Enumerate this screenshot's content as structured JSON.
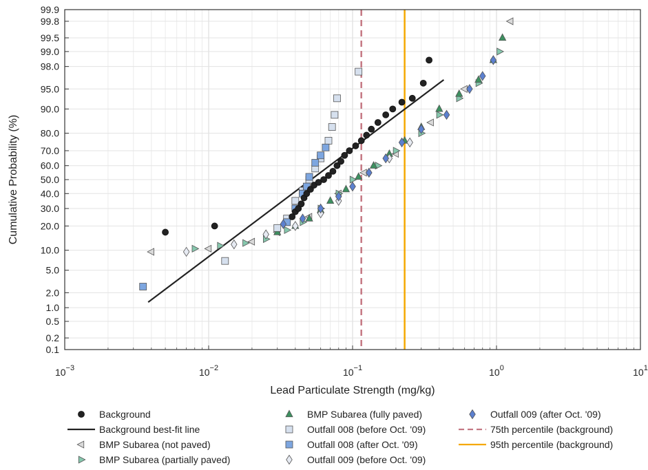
{
  "chart_data": {
    "type": "scatter",
    "xlabel": "Lead Particulate Strength (mg/kg)",
    "ylabel": "Cumulative Probability (%)",
    "x_scale": "log",
    "y_scale": "probability",
    "xlim": [
      0.001,
      10
    ],
    "ylim": [
      0.1,
      99.9
    ],
    "x_ticks": [
      0.001,
      0.01,
      0.1,
      1,
      10
    ],
    "x_tick_labels": [
      {
        "base": "10",
        "exp": "−3"
      },
      {
        "base": "10",
        "exp": "−2"
      },
      {
        "base": "10",
        "exp": "−1"
      },
      {
        "base": "10",
        "exp": "0"
      },
      {
        "base": "10",
        "exp": "1"
      }
    ],
    "y_ticks": [
      0.1,
      0.2,
      0.5,
      1.0,
      2.0,
      5.0,
      10.0,
      20.0,
      30.0,
      40.0,
      50.0,
      60.0,
      70.0,
      80.0,
      90.0,
      95.0,
      98.0,
      99.0,
      99.5,
      99.8,
      99.9
    ],
    "y_tick_labels": [
      "0.1",
      "0.2",
      "0.5",
      "1.0",
      "2.0",
      "5.0",
      "10.0",
      "20.0",
      "30.0",
      "40.0",
      "50.0",
      "60.0",
      "70.0",
      "80.0",
      "90.0",
      "95.0",
      "98.0",
      "99.0",
      "99.5",
      "99.8",
      "99.9"
    ],
    "grid": true,
    "legend_position": "below",
    "legend_columns": 3,
    "series": [
      {
        "name": "Background",
        "marker": "circle",
        "color": "#222222",
        "points": [
          [
            0.005,
            17
          ],
          [
            0.011,
            20
          ],
          [
            0.038,
            25
          ],
          [
            0.04,
            28
          ],
          [
            0.042,
            30
          ],
          [
            0.044,
            33
          ],
          [
            0.046,
            37
          ],
          [
            0.048,
            40
          ],
          [
            0.051,
            43
          ],
          [
            0.054,
            46
          ],
          [
            0.058,
            48
          ],
          [
            0.063,
            50
          ],
          [
            0.068,
            53
          ],
          [
            0.073,
            56
          ],
          [
            0.078,
            60
          ],
          [
            0.083,
            63
          ],
          [
            0.088,
            67
          ],
          [
            0.095,
            70
          ],
          [
            0.105,
            73
          ],
          [
            0.115,
            76
          ],
          [
            0.125,
            79
          ],
          [
            0.135,
            82
          ],
          [
            0.15,
            85
          ],
          [
            0.17,
            88
          ],
          [
            0.19,
            90
          ],
          [
            0.22,
            92
          ],
          [
            0.26,
            93
          ],
          [
            0.31,
            96
          ],
          [
            0.34,
            98.5
          ]
        ]
      },
      {
        "name": "Background best-fit line",
        "kind": "line",
        "color": "#222222",
        "points": [
          [
            0.0038,
            1.3
          ],
          [
            0.43,
            96.5
          ]
        ]
      },
      {
        "name": "BMP Subarea (not paved)",
        "marker": "triangle-left",
        "color": "#d9d9d9",
        "points": [
          [
            0.004,
            9.5
          ],
          [
            0.01,
            10.5
          ],
          [
            0.02,
            13
          ],
          [
            0.03,
            17
          ],
          [
            0.05,
            25
          ],
          [
            0.08,
            40
          ],
          [
            0.12,
            55
          ],
          [
            0.2,
            68
          ],
          [
            0.35,
            85
          ],
          [
            0.6,
            95
          ],
          [
            1.25,
            99.8
          ]
        ]
      },
      {
        "name": "BMP Subarea (partially paved)",
        "marker": "triangle-right",
        "color": "#86c7ad",
        "points": [
          [
            0.008,
            10.5
          ],
          [
            0.012,
            11.5
          ],
          [
            0.018,
            12.5
          ],
          [
            0.025,
            14
          ],
          [
            0.035,
            18
          ],
          [
            0.045,
            22
          ],
          [
            0.06,
            30
          ],
          [
            0.08,
            40
          ],
          [
            0.1,
            50
          ],
          [
            0.15,
            60
          ],
          [
            0.2,
            70
          ],
          [
            0.3,
            80
          ],
          [
            0.4,
            88
          ],
          [
            0.55,
            93
          ],
          [
            0.75,
            96
          ],
          [
            1.05,
            99.0
          ]
        ]
      },
      {
        "name": "BMP Subarea (fully paved)",
        "marker": "triangle-up",
        "color": "#3d9060",
        "points": [
          [
            0.03,
            17
          ],
          [
            0.04,
            20
          ],
          [
            0.05,
            24
          ],
          [
            0.06,
            29
          ],
          [
            0.07,
            35
          ],
          [
            0.09,
            43
          ],
          [
            0.11,
            52
          ],
          [
            0.14,
            60
          ],
          [
            0.18,
            68
          ],
          [
            0.23,
            76
          ],
          [
            0.3,
            83
          ],
          [
            0.4,
            90
          ],
          [
            0.55,
            94
          ],
          [
            0.75,
            96.5
          ],
          [
            0.95,
            98.5
          ],
          [
            1.1,
            99.5
          ]
        ]
      },
      {
        "name": "Outfall 008 (before Oct. '09)",
        "marker": "square",
        "color": "#d6e0ee",
        "points": [
          [
            0.013,
            7
          ],
          [
            0.03,
            19
          ],
          [
            0.035,
            24
          ],
          [
            0.04,
            35
          ],
          [
            0.045,
            42
          ],
          [
            0.05,
            50
          ],
          [
            0.055,
            58
          ],
          [
            0.06,
            65
          ],
          [
            0.068,
            76
          ],
          [
            0.072,
            83
          ],
          [
            0.075,
            88
          ],
          [
            0.078,
            93
          ],
          [
            0.11,
            97.5
          ]
        ]
      },
      {
        "name": "Outfall 008 (after Oct. '09)",
        "marker": "square",
        "color": "#7da6e0",
        "points": [
          [
            0.0035,
            2.6
          ],
          [
            0.035,
            22
          ],
          [
            0.04,
            30
          ],
          [
            0.045,
            40
          ],
          [
            0.048,
            45
          ],
          [
            0.05,
            52
          ],
          [
            0.055,
            62
          ],
          [
            0.06,
            67
          ],
          [
            0.065,
            72
          ]
        ]
      },
      {
        "name": "Outfall 009 (before Oct. '09)",
        "marker": "diamond",
        "color": "#e6eaf2",
        "points": [
          [
            0.007,
            9.5
          ],
          [
            0.015,
            12
          ],
          [
            0.025,
            16
          ],
          [
            0.04,
            20
          ],
          [
            0.06,
            27
          ],
          [
            0.08,
            35
          ],
          [
            0.1,
            45
          ],
          [
            0.13,
            55
          ],
          [
            0.18,
            65
          ],
          [
            0.25,
            75
          ]
        ]
      },
      {
        "name": "Outfall 009 (after Oct. '09)",
        "marker": "diamond",
        "color": "#5c80cf",
        "points": [
          [
            0.033,
            21
          ],
          [
            0.045,
            24
          ],
          [
            0.06,
            30
          ],
          [
            0.08,
            38
          ],
          [
            0.1,
            45
          ],
          [
            0.13,
            55
          ],
          [
            0.17,
            65
          ],
          [
            0.22,
            75
          ],
          [
            0.3,
            82
          ],
          [
            0.45,
            88
          ],
          [
            0.65,
            95
          ],
          [
            0.8,
            97
          ],
          [
            0.95,
            98.5
          ]
        ]
      },
      {
        "name": "75th percentile (background)",
        "kind": "vline",
        "style": "dashed",
        "color": "#c47883",
        "x": 0.115
      },
      {
        "name": "95th percentile (background)",
        "kind": "vline",
        "style": "solid",
        "color": "#f5a800",
        "x": 0.23
      }
    ]
  }
}
